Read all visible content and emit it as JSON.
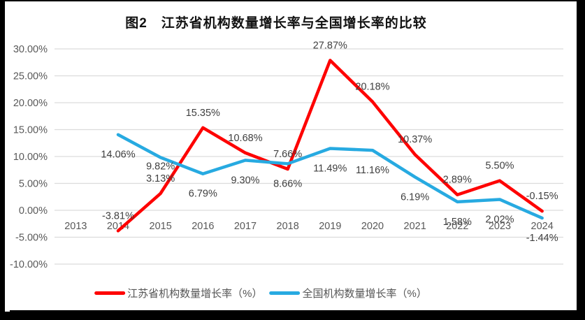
{
  "chart_data": {
    "type": "line",
    "title": "图2　江苏省机构数量增长率与全国增长率的比较",
    "categories": [
      "2013",
      "2014",
      "2015",
      "2016",
      "2017",
      "2018",
      "2019",
      "2020",
      "2021",
      "2022",
      "2023",
      "2024"
    ],
    "series": [
      {
        "name": "江苏省机构数量增长率（%）",
        "color": "#fe0000",
        "label_side": "above",
        "values": [
          null,
          -3.81,
          3.13,
          15.35,
          10.68,
          7.66,
          27.87,
          20.18,
          10.37,
          2.89,
          5.5,
          -0.15
        ]
      },
      {
        "name": "全国机构数量增长率（%）",
        "color": "#27aae1",
        "label_side": "below",
        "values": [
          null,
          14.06,
          9.82,
          6.79,
          9.3,
          8.66,
          11.49,
          11.16,
          6.19,
          1.58,
          2.02,
          -1.44
        ]
      }
    ],
    "ylim": [
      -10,
      30
    ],
    "ytick_step": 5,
    "ytick_format": "0.00%",
    "data_label_format": "0.00%",
    "grid": true,
    "legend_position": "bottom"
  },
  "colors": {
    "grid": "#dcdcdc",
    "axis_text": "#595959",
    "data_label_text": "#3f3f3f",
    "title_text": "#111111",
    "frame": "#000000",
    "background": "#ffffff"
  }
}
